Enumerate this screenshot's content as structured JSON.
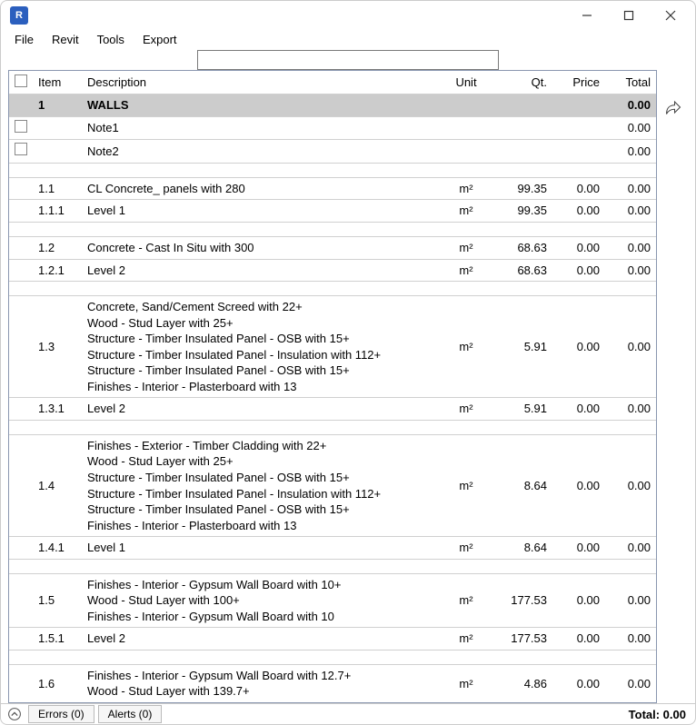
{
  "window": {
    "app_icon_letter": "R"
  },
  "menu": {
    "file": "File",
    "revit": "Revit",
    "tools": "Tools",
    "export": "Export"
  },
  "search": {
    "value": "",
    "placeholder": ""
  },
  "headers": {
    "item": "Item",
    "description": "Description",
    "unit": "Unit",
    "qt": "Qt.",
    "price": "Price",
    "total": "Total"
  },
  "colors": {
    "section_bg": "#cccccc",
    "border": "#d0d0d0",
    "frame_border": "#8a97b0"
  },
  "rows": [
    {
      "type": "section",
      "item": "1",
      "description": "WALLS",
      "total": "0.00"
    },
    {
      "type": "note",
      "checkbox": true,
      "description": "Note1",
      "total": "0.00"
    },
    {
      "type": "note",
      "checkbox": true,
      "description": "Note2",
      "total": "0.00"
    },
    {
      "type": "gap"
    },
    {
      "type": "data",
      "item": "1.1",
      "description": "CL Concrete_ panels with 280",
      "unit": "m²",
      "qt": "99.35",
      "price": "0.00",
      "total": "0.00"
    },
    {
      "type": "data",
      "item": "1.1.1",
      "description": "Level 1",
      "unit": "m²",
      "qt": "99.35",
      "price": "0.00",
      "total": "0.00"
    },
    {
      "type": "gap"
    },
    {
      "type": "data",
      "item": "1.2",
      "description": "Concrete - Cast In Situ with 300",
      "unit": "m²",
      "qt": "68.63",
      "price": "0.00",
      "total": "0.00"
    },
    {
      "type": "data",
      "item": "1.2.1",
      "description": "Level 2",
      "unit": "m²",
      "qt": "68.63",
      "price": "0.00",
      "total": "0.00"
    },
    {
      "type": "gap"
    },
    {
      "type": "data",
      "item": "1.3",
      "description": "Concrete, Sand/Cement Screed with 22+\nWood - Stud Layer with 25+\nStructure - Timber Insulated Panel - OSB with 15+\nStructure - Timber Insulated Panel - Insulation with 112+\nStructure - Timber Insulated Panel - OSB with 15+\nFinishes - Interior - Plasterboard with 13",
      "unit": "m²",
      "qt": "5.91",
      "price": "0.00",
      "total": "0.00"
    },
    {
      "type": "data",
      "item": "1.3.1",
      "description": "Level 2",
      "unit": "m²",
      "qt": "5.91",
      "price": "0.00",
      "total": "0.00"
    },
    {
      "type": "gap"
    },
    {
      "type": "data",
      "item": "1.4",
      "description": "Finishes - Exterior - Timber Cladding with 22+\nWood - Stud Layer with 25+\nStructure - Timber Insulated Panel - OSB with 15+\nStructure - Timber Insulated Panel - Insulation with 112+\nStructure - Timber Insulated Panel - OSB with 15+\nFinishes - Interior - Plasterboard with 13",
      "unit": "m²",
      "qt": "8.64",
      "price": "0.00",
      "total": "0.00"
    },
    {
      "type": "data",
      "item": "1.4.1",
      "description": "Level 1",
      "unit": "m²",
      "qt": "8.64",
      "price": "0.00",
      "total": "0.00"
    },
    {
      "type": "gap"
    },
    {
      "type": "data",
      "item": "1.5",
      "description": "Finishes - Interior - Gypsum Wall Board with 10+\nWood - Stud Layer with 100+\nFinishes - Interior - Gypsum Wall Board with 10",
      "unit": "m²",
      "qt": "177.53",
      "price": "0.00",
      "total": "0.00"
    },
    {
      "type": "data",
      "item": "1.5.1",
      "description": "Level 2",
      "unit": "m²",
      "qt": "177.53",
      "price": "0.00",
      "total": "0.00"
    },
    {
      "type": "gap"
    },
    {
      "type": "cutoff",
      "item": "1.6",
      "description": "Finishes - Interior - Gypsum Wall Board with 12.7+\nWood - Stud Layer with 139.7+",
      "unit": "m²",
      "qt": "4.86",
      "price": "0.00",
      "total": "0.00"
    }
  ],
  "status": {
    "errors": "Errors (0)",
    "alerts": "Alerts (0)",
    "total_label": "Total: 0.00"
  }
}
